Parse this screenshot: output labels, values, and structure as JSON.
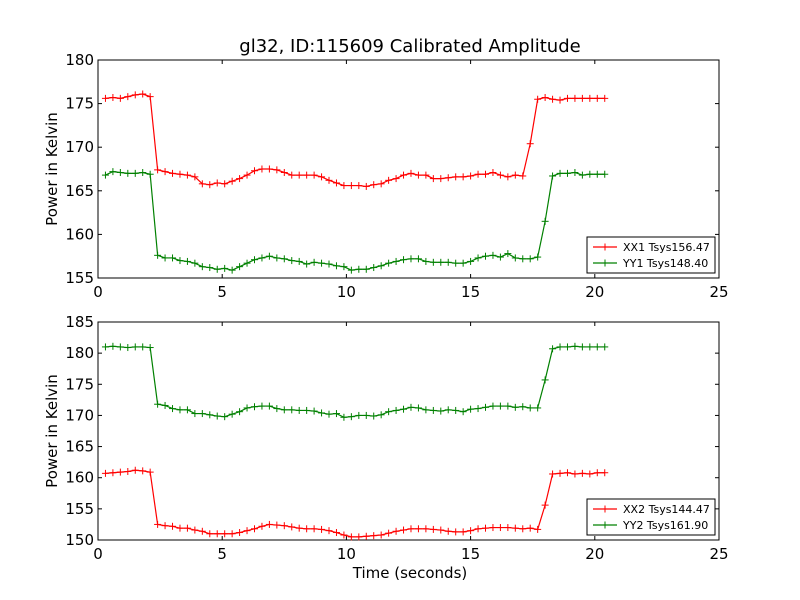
{
  "title": "gl32, ID:115609 Calibrated Amplitude",
  "xlabel": "Time (seconds)",
  "colors": {
    "red": "#ff0000",
    "green": "#008000"
  },
  "chart_data": [
    {
      "type": "line",
      "ylabel": "Power in Kelvin",
      "xlim": [
        0,
        25
      ],
      "ylim": [
        155,
        180
      ],
      "xticks": [
        "0",
        "5",
        "10",
        "15",
        "20",
        "25"
      ],
      "yticks": [
        "155",
        "160",
        "165",
        "170",
        "175",
        "180"
      ],
      "legend_position": "lower-right",
      "x": [
        0.3,
        0.6,
        0.9,
        1.2,
        1.5,
        1.8,
        2.1,
        2.4,
        2.7,
        3.0,
        3.3,
        3.6,
        3.9,
        4.2,
        4.5,
        4.8,
        5.1,
        5.4,
        5.7,
        6.0,
        6.3,
        6.6,
        6.9,
        7.2,
        7.5,
        7.8,
        8.1,
        8.4,
        8.7,
        9.0,
        9.3,
        9.6,
        9.9,
        10.2,
        10.5,
        10.8,
        11.1,
        11.4,
        11.7,
        12.0,
        12.3,
        12.6,
        12.9,
        13.2,
        13.5,
        13.8,
        14.1,
        14.4,
        14.7,
        15.0,
        15.3,
        15.6,
        15.9,
        16.2,
        16.5,
        16.8,
        17.1,
        17.4,
        17.7,
        18.0,
        18.3,
        18.6,
        18.9,
        19.2,
        19.5,
        19.8,
        20.1,
        20.4
      ],
      "series": [
        {
          "name": "XX1 Tsys156.47",
          "color": "#ff0000",
          "values": [
            175.6,
            175.7,
            175.6,
            175.8,
            176.0,
            176.1,
            175.8,
            167.4,
            167.2,
            167.0,
            166.9,
            166.8,
            166.6,
            165.8,
            165.7,
            165.9,
            165.8,
            166.1,
            166.4,
            166.8,
            167.3,
            167.5,
            167.5,
            167.4,
            167.1,
            166.8,
            166.8,
            166.8,
            166.8,
            166.6,
            166.2,
            165.9,
            165.6,
            165.6,
            165.6,
            165.5,
            165.7,
            165.8,
            166.2,
            166.4,
            166.8,
            167.0,
            166.8,
            166.8,
            166.4,
            166.4,
            166.5,
            166.6,
            166.6,
            166.7,
            166.9,
            166.9,
            167.1,
            166.8,
            166.6,
            166.8,
            166.7,
            170.4,
            175.5,
            175.7,
            175.5,
            175.4,
            175.6,
            175.6,
            175.6,
            175.6,
            175.6,
            175.6
          ]
        },
        {
          "name": "YY1 Tsys148.40",
          "color": "#008000",
          "values": [
            166.8,
            167.2,
            167.1,
            167.0,
            167.0,
            167.1,
            166.9,
            157.6,
            157.3,
            157.3,
            157.0,
            156.9,
            156.7,
            156.3,
            156.2,
            156.0,
            156.1,
            155.9,
            156.3,
            156.7,
            157.1,
            157.3,
            157.5,
            157.3,
            157.2,
            157.0,
            156.9,
            156.6,
            156.8,
            156.7,
            156.6,
            156.4,
            156.3,
            155.9,
            156.0,
            156.0,
            156.2,
            156.4,
            156.7,
            156.9,
            157.1,
            157.2,
            157.2,
            156.9,
            156.8,
            156.8,
            156.8,
            156.7,
            156.7,
            156.9,
            157.3,
            157.5,
            157.6,
            157.4,
            157.8,
            157.3,
            157.2,
            157.2,
            157.4,
            161.5,
            166.7,
            167.0,
            167.0,
            167.1,
            166.8,
            166.9,
            166.9,
            166.9
          ]
        }
      ]
    },
    {
      "type": "line",
      "ylabel": "Power in Kelvin",
      "xlabel": "Time (seconds)",
      "xlim": [
        0,
        25
      ],
      "ylim": [
        150,
        185
      ],
      "xticks": [
        "0",
        "5",
        "10",
        "15",
        "20",
        "25"
      ],
      "yticks": [
        "150",
        "155",
        "160",
        "165",
        "170",
        "175",
        "180",
        "185"
      ],
      "legend_position": "lower-right",
      "x": [
        0.3,
        0.6,
        0.9,
        1.2,
        1.5,
        1.8,
        2.1,
        2.4,
        2.7,
        3.0,
        3.3,
        3.6,
        3.9,
        4.2,
        4.5,
        4.8,
        5.1,
        5.4,
        5.7,
        6.0,
        6.3,
        6.6,
        6.9,
        7.2,
        7.5,
        7.8,
        8.1,
        8.4,
        8.7,
        9.0,
        9.3,
        9.6,
        9.9,
        10.2,
        10.5,
        10.8,
        11.1,
        11.4,
        11.7,
        12.0,
        12.3,
        12.6,
        12.9,
        13.2,
        13.5,
        13.8,
        14.1,
        14.4,
        14.7,
        15.0,
        15.3,
        15.6,
        15.9,
        16.2,
        16.5,
        16.8,
        17.1,
        17.4,
        17.7,
        18.0,
        18.3,
        18.6,
        18.9,
        19.2,
        19.5,
        19.8,
        20.1,
        20.4
      ],
      "series": [
        {
          "name": "XX2 Tsys144.47",
          "color": "#ff0000",
          "values": [
            160.7,
            160.8,
            160.9,
            161.0,
            161.2,
            161.1,
            160.9,
            152.5,
            152.3,
            152.2,
            151.9,
            151.9,
            151.6,
            151.4,
            151.0,
            151.0,
            151.0,
            151.0,
            151.2,
            151.5,
            151.8,
            152.2,
            152.5,
            152.4,
            152.3,
            152.1,
            151.9,
            151.8,
            151.8,
            151.7,
            151.5,
            151.2,
            150.8,
            150.5,
            150.5,
            150.6,
            150.7,
            150.8,
            151.1,
            151.4,
            151.6,
            151.8,
            151.8,
            151.8,
            151.7,
            151.6,
            151.4,
            151.3,
            151.3,
            151.5,
            151.8,
            151.9,
            152.0,
            152.0,
            152.0,
            151.9,
            151.8,
            151.9,
            151.7,
            155.6,
            160.6,
            160.7,
            160.8,
            160.6,
            160.7,
            160.6,
            160.8,
            160.8
          ]
        },
        {
          "name": "YY2 Tsys161.90",
          "color": "#008000",
          "values": [
            181.0,
            181.1,
            181.0,
            180.9,
            181.0,
            181.0,
            180.9,
            171.8,
            171.6,
            171.1,
            170.9,
            170.9,
            170.3,
            170.3,
            170.1,
            169.9,
            169.8,
            170.2,
            170.6,
            171.2,
            171.4,
            171.5,
            171.5,
            171.1,
            170.9,
            170.9,
            170.8,
            170.8,
            170.7,
            170.4,
            170.2,
            170.3,
            169.7,
            169.8,
            170.0,
            170.0,
            169.9,
            170.1,
            170.6,
            170.8,
            171.0,
            171.3,
            171.2,
            170.9,
            170.8,
            170.7,
            170.9,
            170.8,
            170.6,
            171.0,
            171.1,
            171.3,
            171.5,
            171.5,
            171.5,
            171.3,
            171.4,
            171.2,
            171.2,
            175.7,
            180.7,
            181.0,
            181.0,
            181.1,
            181.0,
            181.0,
            181.0,
            181.0
          ]
        }
      ]
    }
  ]
}
